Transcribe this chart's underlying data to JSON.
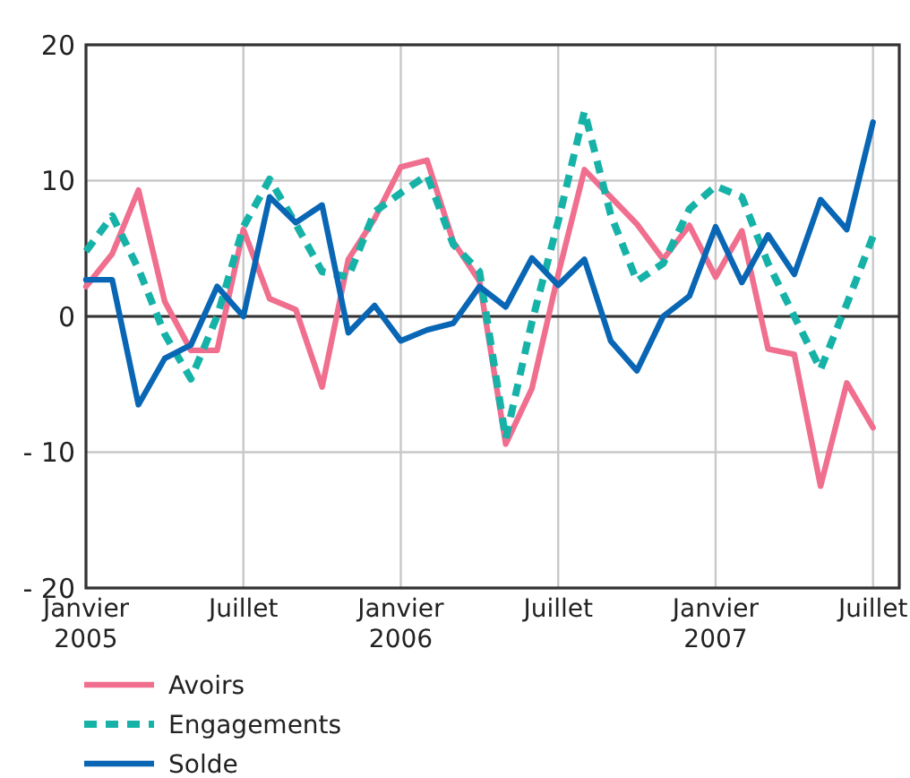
{
  "chart_data": {
    "type": "line",
    "categories": [
      "Janvier\n2005",
      null,
      null,
      null,
      null,
      null,
      "Juillet",
      null,
      null,
      null,
      null,
      null,
      "Janvier\n2006",
      null,
      null,
      null,
      null,
      null,
      "Juillet",
      null,
      null,
      null,
      null,
      null,
      "Janvier\n2007",
      null,
      null,
      null,
      null,
      null,
      "Juillet"
    ],
    "series": [
      {
        "name": "Avoirs",
        "color": "#f06e8e",
        "line_style": "solid",
        "values": [
          2.2,
          4.6,
          9.3,
          1.1,
          -2.5,
          -2.5,
          6.4,
          1.3,
          0.5,
          -5.2,
          4.2,
          7.2,
          11.0,
          11.5,
          5.5,
          2.6,
          -9.4,
          -5.3,
          3.1,
          10.8,
          8.8,
          6.8,
          4.2,
          6.7,
          2.9,
          6.3,
          -2.4,
          -2.8,
          -12.5,
          -4.9,
          -8.2
        ]
      },
      {
        "name": "Engagements",
        "color": "#16b2a8",
        "line_style": "dashed",
        "values": [
          4.8,
          7.4,
          3.5,
          -1.3,
          -4.6,
          0,
          6.6,
          10.1,
          6.8,
          3.3,
          2.9,
          7.7,
          9.1,
          10.4,
          5.3,
          3.3,
          -9.0,
          -0.4,
          7.0,
          15.1,
          7.5,
          2.6,
          3.9,
          7.9,
          9.6,
          8.8,
          3.9,
          0,
          -3.9,
          0.9,
          5.9
        ]
      },
      {
        "name": "Solde",
        "color": "#0866b4",
        "line_style": "solid",
        "values": [
          2.7,
          2.7,
          -6.5,
          -3.1,
          -2.1,
          2.2,
          0,
          8.8,
          6.9,
          8.2,
          -1.2,
          0.8,
          -1.8,
          -1.0,
          -0.5,
          2.2,
          0.7,
          4.3,
          2.3,
          4.2,
          -1.8,
          -4.0,
          0,
          1.5,
          6.6,
          2.5,
          6.0,
          3.1,
          8.6,
          6.4,
          14.3
        ]
      }
    ],
    "ylim": [
      -20,
      20
    ],
    "yticks": [
      {
        "value": -20,
        "label": "- 20"
      },
      {
        "value": -10,
        "label": "- 10"
      },
      0,
      10,
      20
    ],
    "grid": true,
    "legend": "bottom",
    "marker": "none"
  }
}
